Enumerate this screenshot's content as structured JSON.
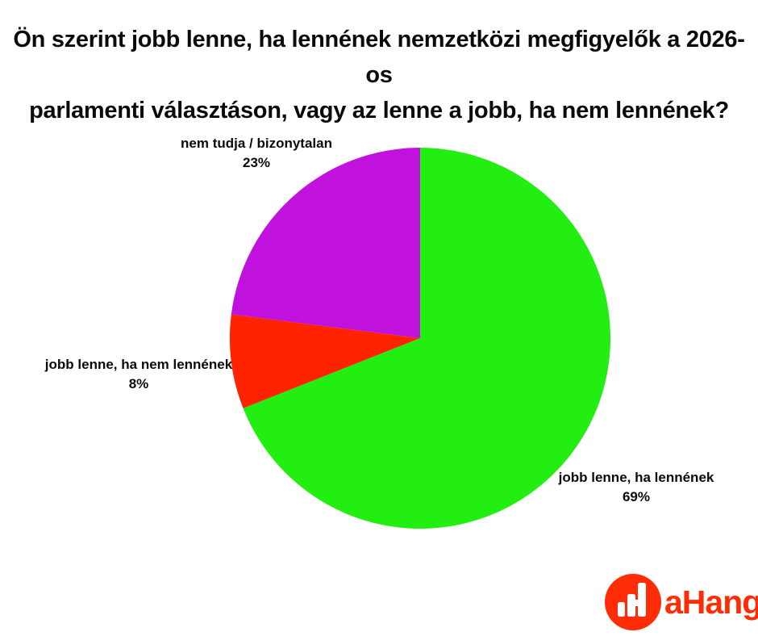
{
  "title": {
    "line1": "Ön szerint jobb lenne, ha lennének nemzetközi megfigyelők a 2026-os",
    "line2": "parlamenti választáson, vagy az lenne a jobb, ha nem lennének?"
  },
  "chart_data": {
    "type": "pie",
    "title": "Ön szerint jobb lenne, ha lennének nemzetközi megfigyelők a 2026-os parlamenti választáson, vagy az lenne a jobb, ha nem lennének?",
    "start_angle": "top",
    "direction": "clockwise",
    "slices": [
      {
        "label": "jobb lenne, ha lennének",
        "value": 69,
        "pct_label": "69%",
        "color": "#23ee11"
      },
      {
        "label": "jobb lenne, ha nem lennének",
        "value": 8,
        "pct_label": "8%",
        "color": "#ff2302"
      },
      {
        "label": "nem tudja / bizonytalan",
        "value": 23,
        "pct_label": "23%",
        "color": "#c111dd"
      }
    ]
  },
  "logo": {
    "brand": "aHang",
    "color": "#ff2d05",
    "icon": "bar-chart-circle-icon"
  }
}
